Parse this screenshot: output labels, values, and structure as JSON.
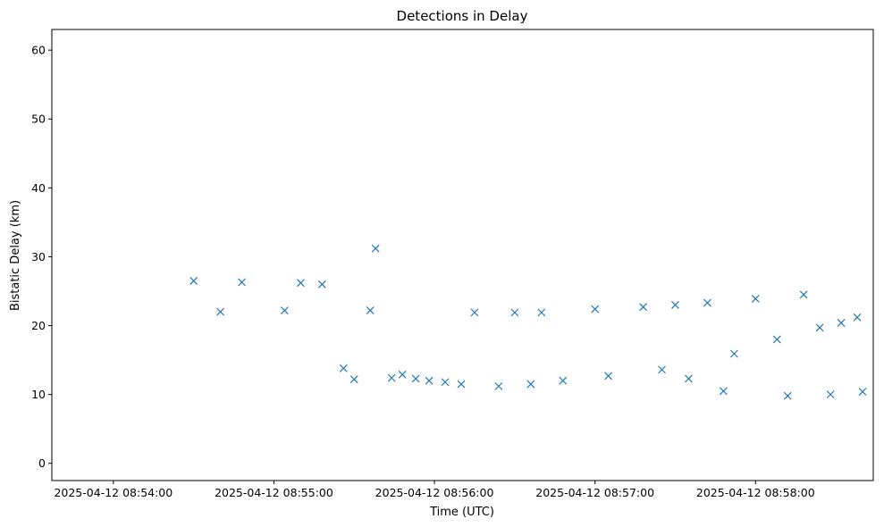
{
  "chart_data": {
    "type": "scatter",
    "title": "Detections in Delay",
    "xlabel": "Time (UTC)",
    "ylabel": "Bistatic Delay (km)",
    "x_tick_labels": [
      "2025-04-12 08:54:00",
      "2025-04-12 08:55:00",
      "2025-04-12 08:56:00",
      "2025-04-12 08:57:00",
      "2025-04-12 08:58:00"
    ],
    "x_ticks": [
      "2025-04-12T08:54:00",
      "2025-04-12T08:55:00",
      "2025-04-12T08:56:00",
      "2025-04-12T08:57:00",
      "2025-04-12T08:58:00"
    ],
    "y_ticks": [
      0,
      10,
      20,
      30,
      40,
      50,
      60
    ],
    "xlim": [
      "2025-04-12T08:53:37",
      "2025-04-12T08:58:44"
    ],
    "ylim": [
      -2.5,
      63
    ],
    "grid": false,
    "marker": "x",
    "marker_color": "#1f77b4",
    "series": [
      {
        "points": [
          [
            "2025-04-12T08:54:30",
            26.5
          ],
          [
            "2025-04-12T08:54:40",
            22
          ],
          [
            "2025-04-12T08:54:48",
            26.3
          ],
          [
            "2025-04-12T08:55:04",
            22.2
          ],
          [
            "2025-04-12T08:55:10",
            26.2
          ],
          [
            "2025-04-12T08:55:18",
            26
          ],
          [
            "2025-04-12T08:55:26",
            13.8
          ],
          [
            "2025-04-12T08:55:30",
            12.2
          ],
          [
            "2025-04-12T08:55:36",
            22.2
          ],
          [
            "2025-04-12T08:55:38",
            31.2
          ],
          [
            "2025-04-12T08:55:44",
            12.4
          ],
          [
            "2025-04-12T08:55:48",
            12.9
          ],
          [
            "2025-04-12T08:55:53",
            12.3
          ],
          [
            "2025-04-12T08:55:58",
            12
          ],
          [
            "2025-04-12T08:56:04",
            11.8
          ],
          [
            "2025-04-12T08:56:10",
            11.5
          ],
          [
            "2025-04-12T08:56:15",
            21.9
          ],
          [
            "2025-04-12T08:56:24",
            11.2
          ],
          [
            "2025-04-12T08:56:30",
            21.9
          ],
          [
            "2025-04-12T08:56:36",
            11.5
          ],
          [
            "2025-04-12T08:56:40",
            21.9
          ],
          [
            "2025-04-12T08:56:48",
            12
          ],
          [
            "2025-04-12T08:57:00",
            22.4
          ],
          [
            "2025-04-12T08:57:05",
            12.7
          ],
          [
            "2025-04-12T08:57:18",
            22.7
          ],
          [
            "2025-04-12T08:57:25",
            13.6
          ],
          [
            "2025-04-12T08:57:30",
            23
          ],
          [
            "2025-04-12T08:57:35",
            12.3
          ],
          [
            "2025-04-12T08:57:42",
            23.3
          ],
          [
            "2025-04-12T08:57:48",
            10.5
          ],
          [
            "2025-04-12T08:57:52",
            15.9
          ],
          [
            "2025-04-12T08:58:00",
            23.9
          ],
          [
            "2025-04-12T08:58:08",
            18
          ],
          [
            "2025-04-12T08:58:12",
            9.8
          ],
          [
            "2025-04-12T08:58:18",
            24.5
          ],
          [
            "2025-04-12T08:58:24",
            19.7
          ],
          [
            "2025-04-12T08:58:28",
            10
          ],
          [
            "2025-04-12T08:58:32",
            20.4
          ],
          [
            "2025-04-12T08:58:38",
            21.2
          ],
          [
            "2025-04-12T08:58:40",
            10.4
          ]
        ]
      }
    ]
  }
}
